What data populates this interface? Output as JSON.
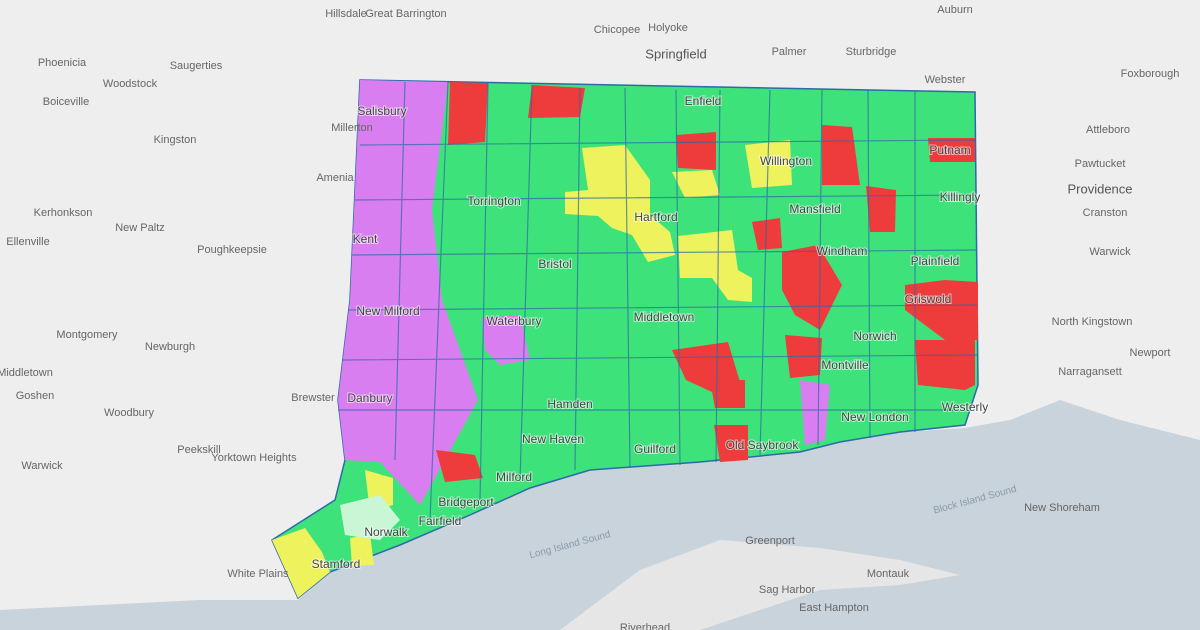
{
  "map": {
    "labels": [
      "Holyoke",
      "Chicopee",
      "Springfield",
      "Palmer",
      "Sturbridge",
      "Auburn",
      "Webster",
      "Foxborough",
      "Attleboro",
      "Pawtucket",
      "Providence",
      "Cranston",
      "Warwick",
      "North Kingstown",
      "Newport",
      "Narragansett",
      "New Shoreham",
      "Block Island Sound",
      "Long Island Sound",
      "Greenport",
      "Montauk",
      "Sag Harbor",
      "East Hampton",
      "Riverhead",
      "Phoenicia",
      "Woodstock",
      "Saugerties",
      "Boiceville",
      "Kingston",
      "Hillsdale",
      "Great Barrington",
      "Millerton",
      "Amenia",
      "Kerhonkson",
      "New Paltz",
      "Ellenville",
      "Poughkeepsie",
      "Montgomery",
      "Newburgh",
      "Middletown",
      "Goshen",
      "Woodbury",
      "Brewster",
      "Peekskill",
      "Yorktown Heights",
      "Warwick",
      "White Plains",
      "Salisbury",
      "Enfield",
      "Willington",
      "Putnam",
      "Torrington",
      "Hartford",
      "Mansfield",
      "Killingly",
      "Kent",
      "Bristol",
      "Windham",
      "Plainfield",
      "Griswold",
      "New Milford",
      "Waterbury",
      "Middletown",
      "Norwich",
      "Montville",
      "Danbury",
      "Hamden",
      "New London",
      "Westerly",
      "New Haven",
      "Guilford",
      "Old Saybrook",
      "Milford",
      "Bridgeport",
      "Fairfield",
      "Norwalk",
      "Stamford"
    ]
  }
}
